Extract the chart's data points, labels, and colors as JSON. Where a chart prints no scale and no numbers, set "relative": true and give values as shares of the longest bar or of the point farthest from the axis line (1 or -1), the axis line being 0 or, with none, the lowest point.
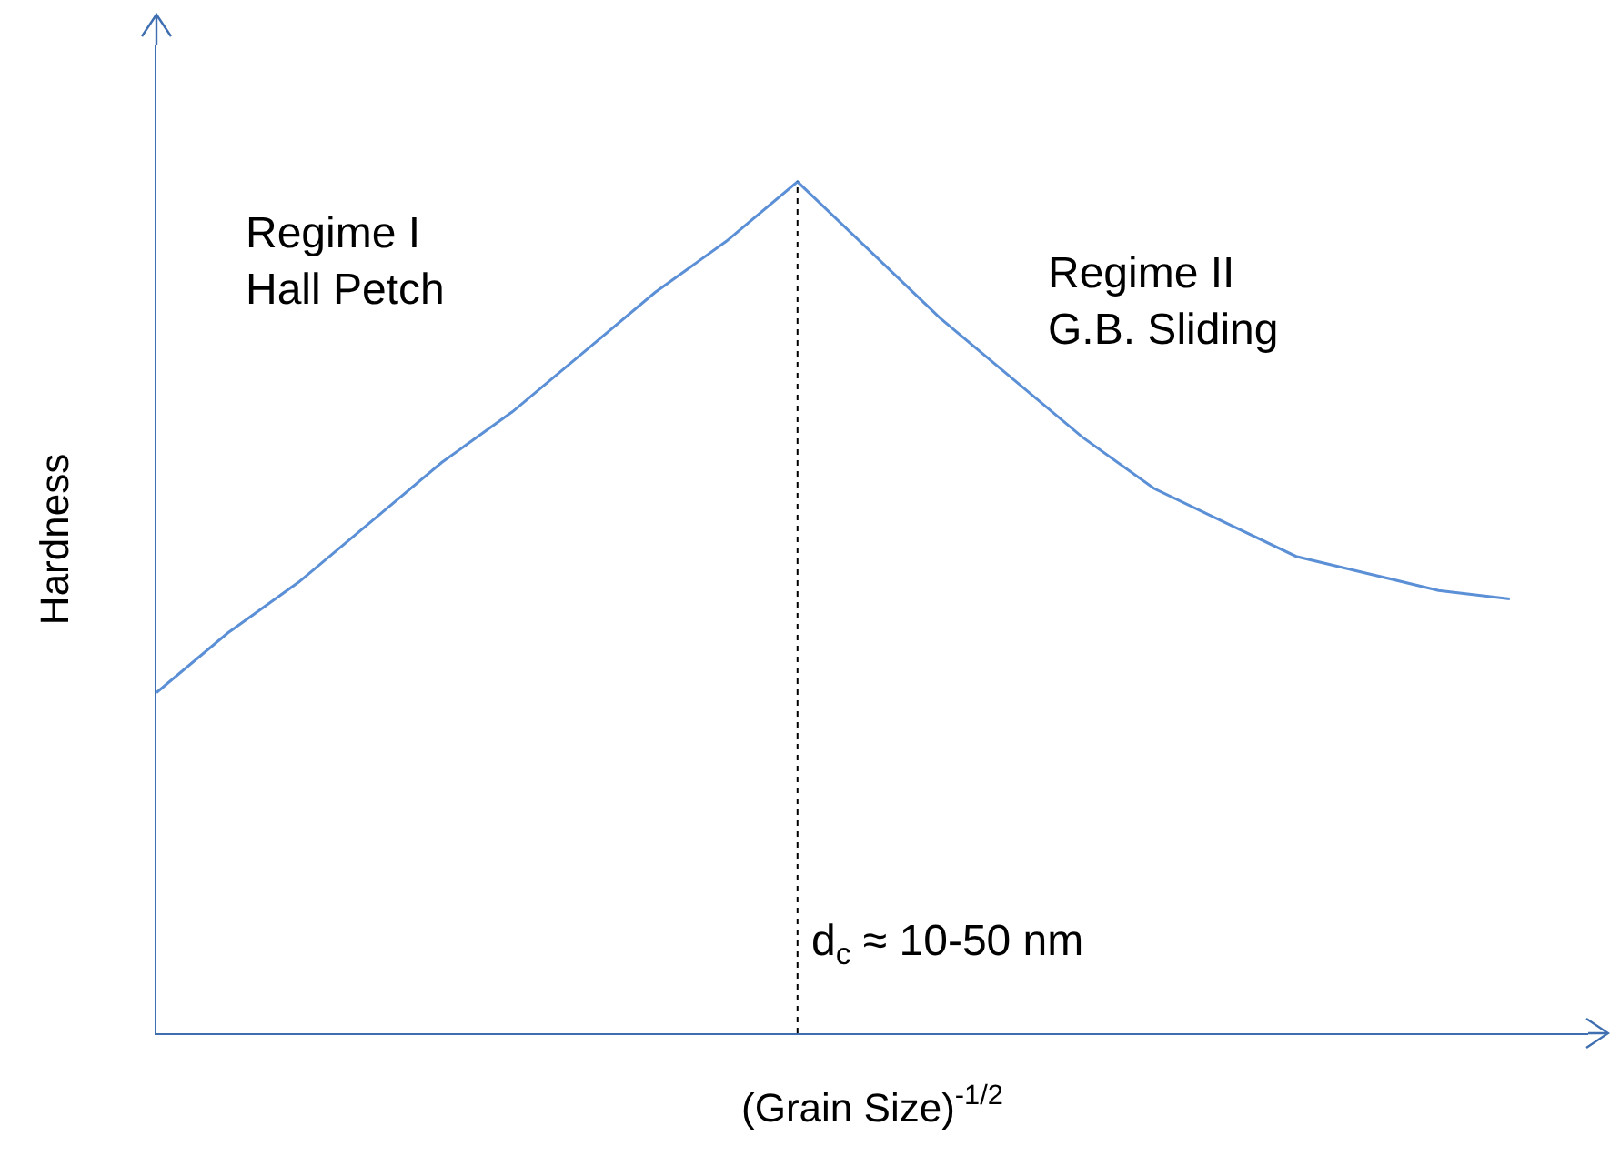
{
  "chart_data": {
    "type": "line",
    "relative": true,
    "xlabel": "(Grain Size)$^{-1/2}$",
    "ylabel": "Hardness",
    "color": "#5b8fd6",
    "categories": [
      null,
      null,
      null,
      null,
      null,
      null,
      null,
      null,
      null,
      null,
      null,
      null,
      null,
      null,
      null,
      null,
      null,
      null,
      null,
      null
    ],
    "values": [
      0.4,
      0.47,
      0.53,
      0.6,
      0.67,
      0.73,
      0.8,
      0.87,
      0.93,
      1.0,
      0.92,
      0.84,
      0.77,
      0.7,
      0.64,
      0.6,
      0.56,
      0.54,
      0.52,
      0.51
    ],
    "annotations": [
      "Regime I\nHall Petch",
      "Regime II\nG.B. Sliding",
      "d$_{c}$ ≈ 10-50 nm"
    ]
  }
}
